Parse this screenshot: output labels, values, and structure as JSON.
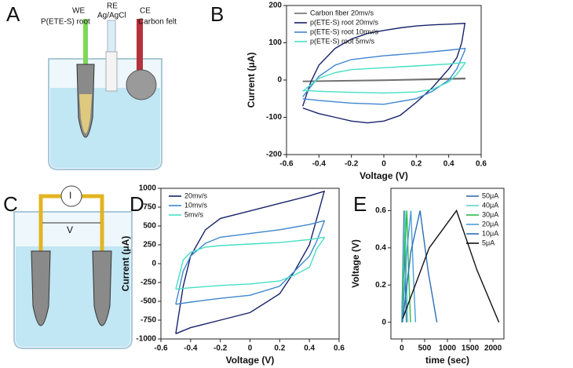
{
  "illustrations": [
    {
      "panel": "A",
      "labels": [
        "WE",
        "P(ETE-S) root",
        "RE",
        "Ag/AgCl",
        "CE",
        "Carbon felt"
      ]
    },
    {
      "panel": "C",
      "labels": [
        "I",
        "V"
      ]
    }
  ],
  "chart_data": [
    {
      "type": "line",
      "panel": "B",
      "xlabel": "Voltage (V)",
      "ylabel": "Current (μA)",
      "xlim": [
        -0.6,
        0.6
      ],
      "xticks": [
        -0.6,
        -0.4,
        -0.2,
        0,
        0.2,
        0.4,
        0.6
      ],
      "ylim": [
        -200,
        200
      ],
      "yticks": [
        -200,
        -100,
        0,
        100,
        200
      ],
      "legend": "upper left",
      "series": [
        {
          "name": "Carbon fiber 20mv/s",
          "color": "#6e6e6e",
          "x": [
            -0.5,
            0,
            0.5,
            0.5,
            0,
            -0.5
          ],
          "values": [
            -3,
            0,
            5,
            3,
            -1,
            -4
          ]
        },
        {
          "name": "p(ETE-S) root 20mv/s",
          "color": "#17226a",
          "x": [
            -0.5,
            -0.47,
            -0.45,
            -0.4,
            -0.3,
            -0.2,
            -0.1,
            0,
            0.1,
            0.2,
            0.3,
            0.4,
            0.5,
            0.48,
            0.45,
            0.4,
            0.3,
            0.2,
            0.1,
            0,
            -0.1,
            -0.2,
            -0.3,
            -0.4,
            -0.5
          ],
          "values": [
            -70,
            -30,
            -5,
            40,
            85,
            110,
            125,
            133,
            140,
            145,
            148,
            150,
            152,
            100,
            60,
            30,
            -20,
            -60,
            -95,
            -110,
            -115,
            -110,
            -100,
            -90,
            -75
          ]
        },
        {
          "name": "p(ETE-S) root 10mv/s",
          "color": "#3f86cf",
          "x": [
            -0.5,
            -0.4,
            -0.3,
            -0.2,
            0,
            0.2,
            0.4,
            0.5,
            0.5,
            0.45,
            0.4,
            0.3,
            0.2,
            0,
            -0.2,
            -0.4,
            -0.5
          ],
          "values": [
            -45,
            10,
            40,
            55,
            65,
            72,
            80,
            85,
            80,
            30,
            0,
            -30,
            -50,
            -65,
            -62,
            -55,
            -50
          ]
        },
        {
          "name": "p(ETE-S) root 5mv/s",
          "color": "#44dfc4",
          "x": [
            -0.5,
            -0.4,
            -0.3,
            -0.2,
            0,
            0.2,
            0.4,
            0.5,
            0.5,
            0.45,
            0.4,
            0.3,
            0.2,
            0,
            -0.2,
            -0.4,
            -0.5
          ],
          "values": [
            -30,
            5,
            20,
            28,
            33,
            38,
            43,
            47,
            45,
            15,
            -5,
            -25,
            -32,
            -35,
            -33,
            -30,
            -28
          ]
        }
      ]
    },
    {
      "type": "line",
      "panel": "D",
      "xlabel": "Voltage (V)",
      "ylabel": "Current (μA)",
      "xlim": [
        -0.6,
        0.6
      ],
      "xticks": [
        -0.6,
        -0.4,
        -0.2,
        0,
        0.2,
        0.4,
        0.6
      ],
      "ylim": [
        -1000,
        1000
      ],
      "yticks": [
        -1000,
        -750,
        -500,
        -250,
        0,
        250,
        500,
        750,
        1000
      ],
      "legend": "upper left",
      "series": [
        {
          "name": "20mv/s",
          "color": "#17226a",
          "x": [
            -0.5,
            -0.45,
            -0.4,
            -0.3,
            -0.2,
            0,
            0.2,
            0.4,
            0.5,
            0.45,
            0.4,
            0.3,
            0.2,
            0,
            -0.2,
            -0.4,
            -0.5
          ],
          "values": [
            -930,
            -300,
            100,
            450,
            600,
            700,
            800,
            900,
            960,
            600,
            250,
            -100,
            -400,
            -650,
            -750,
            -850,
            -930
          ]
        },
        {
          "name": "10mv/s",
          "color": "#3f86cf",
          "x": [
            -0.5,
            -0.45,
            -0.4,
            -0.3,
            -0.2,
            0,
            0.2,
            0.4,
            0.5,
            0.5,
            0.45,
            0.4,
            0.3,
            0.2,
            0,
            -0.2,
            -0.4,
            -0.5
          ],
          "values": [
            -540,
            -100,
            100,
            270,
            350,
            400,
            450,
            520,
            570,
            560,
            300,
            100,
            -100,
            -300,
            -420,
            -460,
            -510,
            -540
          ]
        },
        {
          "name": "5mv/s",
          "color": "#44dfc4",
          "x": [
            -0.5,
            -0.45,
            -0.4,
            -0.3,
            -0.2,
            0,
            0.2,
            0.4,
            0.5,
            0.5,
            0.45,
            0.4,
            0.3,
            0.2,
            0,
            -0.2,
            -0.4,
            -0.5
          ],
          "values": [
            -340,
            50,
            150,
            220,
            240,
            260,
            280,
            320,
            350,
            340,
            200,
            -50,
            -150,
            -230,
            -270,
            -290,
            -320,
            -340
          ]
        }
      ]
    },
    {
      "type": "line",
      "panel": "E",
      "xlabel": "time (sec)",
      "ylabel": "Voltage (V)",
      "xlim": [
        -240,
        2240
      ],
      "xticks": [
        0,
        500,
        1000,
        1500,
        2000
      ],
      "ylim": [
        -0.09,
        0.72
      ],
      "yticks": [
        0,
        0.2,
        0.4,
        0.6
      ],
      "legend": "upper right",
      "series": [
        {
          "name": "50μA",
          "color": "#3a6ea8",
          "x": [
            0,
            25,
            50,
            75,
            100
          ],
          "values": [
            0,
            0.35,
            0.6,
            0.25,
            0
          ]
        },
        {
          "name": "40μA",
          "color": "#5fd6c8",
          "x": [
            5,
            40,
            70,
            100,
            130
          ],
          "values": [
            0,
            0.38,
            0.6,
            0.26,
            0
          ]
        },
        {
          "name": "30μA",
          "color": "#2db84a",
          "x": [
            5,
            60,
            110,
            150,
            190
          ],
          "values": [
            0,
            0.38,
            0.6,
            0.27,
            0
          ]
        },
        {
          "name": "20μA",
          "color": "#4aa0d8",
          "x": [
            10,
            110,
            200,
            250,
            300
          ],
          "values": [
            0,
            0.38,
            0.6,
            0.27,
            0
          ]
        },
        {
          "name": "10μA",
          "color": "#2a6fb8",
          "x": [
            15,
            200,
            400,
            580,
            770
          ],
          "values": [
            0,
            0.38,
            0.6,
            0.27,
            0
          ]
        },
        {
          "name": "5μA",
          "color": "#111111",
          "x": [
            20,
            600,
            1200,
            1650,
            2130
          ],
          "values": [
            0.02,
            0.4,
            0.6,
            0.28,
            0
          ]
        }
      ]
    }
  ]
}
